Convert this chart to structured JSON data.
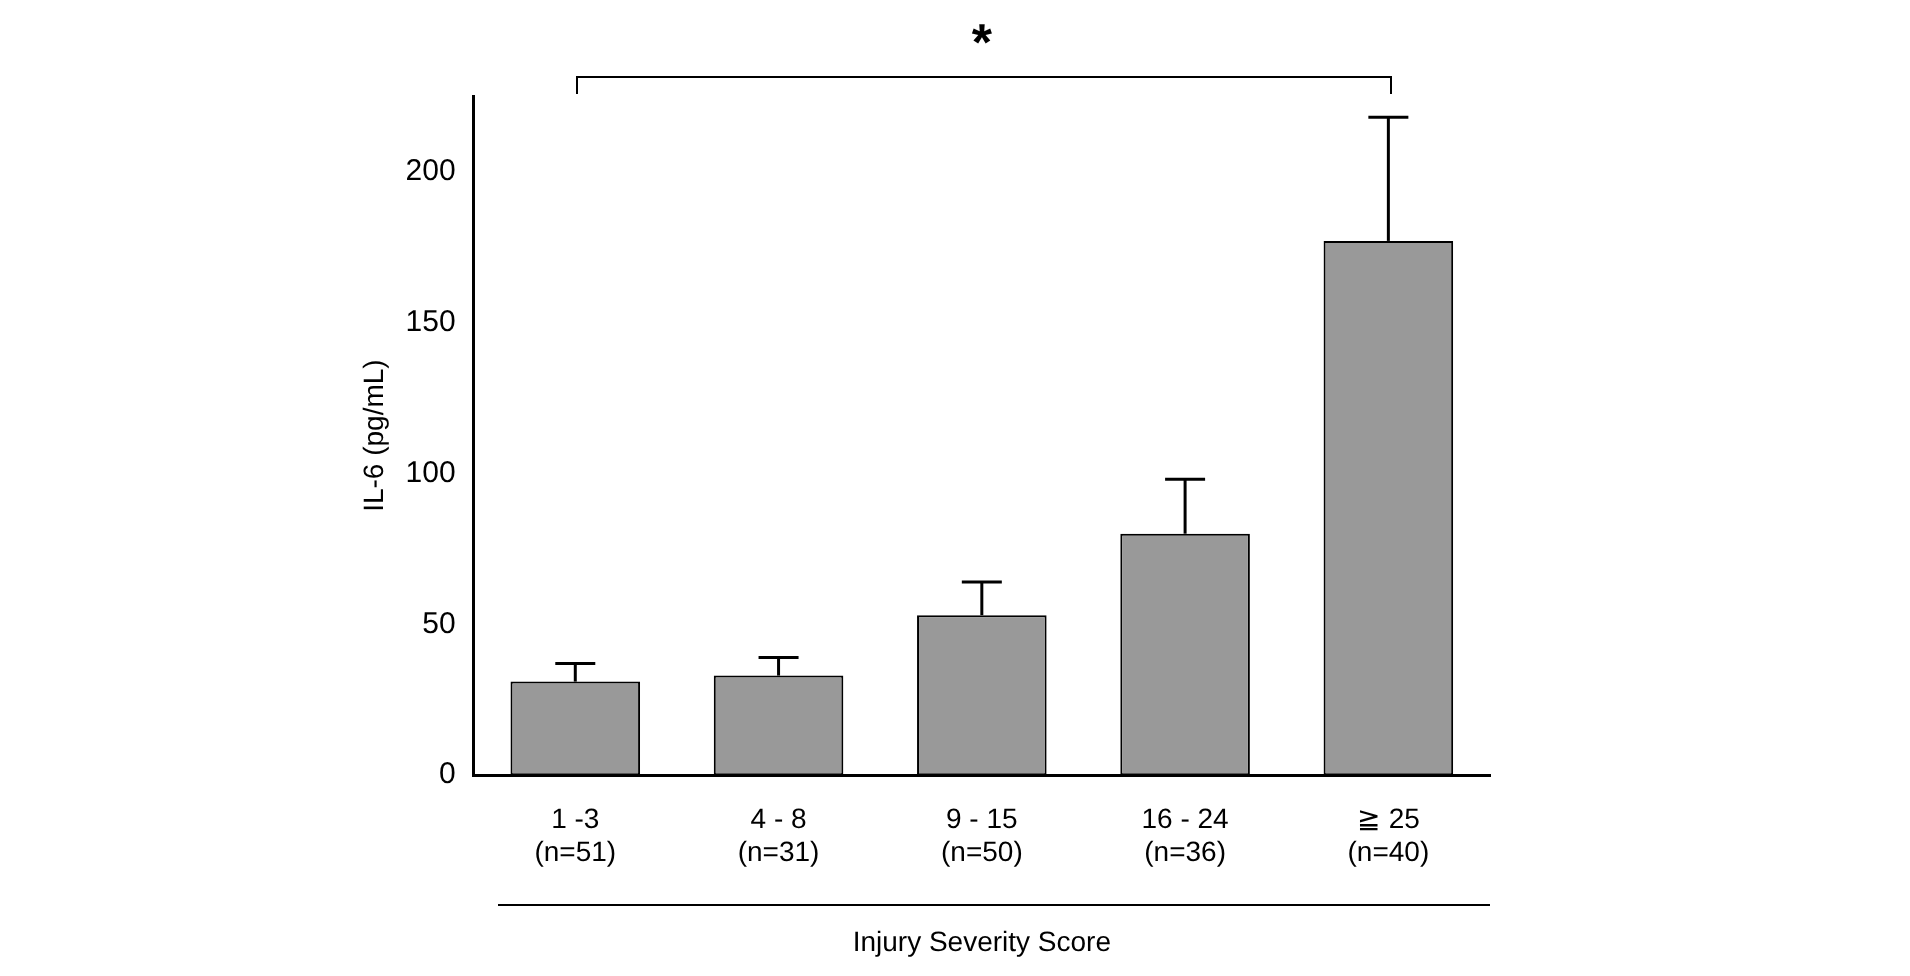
{
  "chart_data": {
    "type": "bar",
    "ylabel": "IL-6 (pg/mL)",
    "xlabel": "Injury Severity Score",
    "categories": [
      "1 -3\n(n=51)",
      "4 - 8\n(n=31)",
      "9 - 15\n(n=50)",
      "16 - 24\n(n=36)",
      "≧ 25\n(n=40)"
    ],
    "values": [
      31,
      33,
      53,
      80,
      177
    ],
    "color": "#999999",
    "errors": [
      [
        31,
        37
      ],
      [
        33,
        39
      ],
      [
        53,
        64
      ],
      [
        80,
        98
      ],
      [
        177,
        218
      ]
    ],
    "ylim": [
      0,
      225
    ],
    "yticks": [
      0,
      50,
      100,
      150,
      200
    ],
    "grid": false,
    "legend": false,
    "annotations": [
      "*"
    ]
  }
}
